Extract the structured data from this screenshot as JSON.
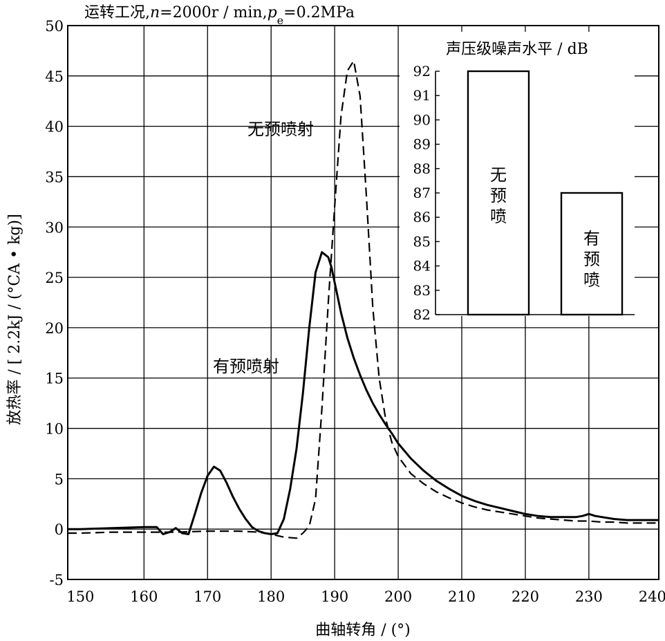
{
  "chart_data": [
    {
      "type": "line",
      "title": "运转工况, n=2000r / min, pe=0.2MPa",
      "title_parts": {
        "prefix": "运转工况,",
        "n_symbol": "n",
        "n_value": "=2000r / min,",
        "p_symbol": "p",
        "p_subscript": "e",
        "p_value": "=0.2MPa"
      },
      "xlabel": "曲轴转角 / (°)",
      "ylabel": "放热率 / [ 2.2kJ / (°CA • kg)]",
      "xlim": [
        148,
        241
      ],
      "ylim": [
        -5,
        50
      ],
      "xticks": [
        150,
        160,
        170,
        180,
        190,
        200,
        210,
        220,
        230,
        240
      ],
      "yticks": [
        -5,
        0,
        5,
        10,
        15,
        20,
        25,
        30,
        35,
        40,
        45,
        50
      ],
      "x_gridlines": [
        160,
        170,
        180,
        190,
        200,
        210,
        220,
        230
      ],
      "y_gridlines": [
        0,
        5,
        10,
        15,
        20,
        25,
        30,
        35,
        40,
        45
      ],
      "grid": true,
      "series": [
        {
          "name": "有预喷射",
          "style": "solid",
          "color": "#000000",
          "x": [
            148,
            150,
            155,
            160,
            162,
            163,
            164,
            165,
            166,
            167,
            168,
            169,
            170,
            171,
            172,
            173,
            174,
            175,
            176,
            177,
            178,
            179,
            180,
            181,
            182,
            183,
            184,
            185,
            186,
            187,
            188,
            189,
            189.5,
            190,
            191,
            192,
            193,
            194,
            195,
            196,
            197,
            198,
            199,
            200,
            202,
            204,
            206,
            208,
            210,
            212,
            214,
            216,
            218,
            220,
            222,
            224,
            226,
            228,
            229,
            230,
            231,
            232,
            234,
            236,
            238,
            240,
            241
          ],
          "y": [
            0.0,
            0.0,
            0.1,
            0.2,
            0.2,
            -0.5,
            -0.3,
            0.1,
            -0.4,
            -0.5,
            1.5,
            3.6,
            5.3,
            6.2,
            5.8,
            4.6,
            3.2,
            2.0,
            1.0,
            0.2,
            -0.2,
            -0.4,
            -0.5,
            -0.4,
            1.0,
            4.0,
            8.0,
            13.5,
            20.0,
            25.5,
            27.5,
            27.0,
            26.0,
            24.5,
            21.5,
            19.0,
            17.0,
            15.3,
            13.8,
            12.5,
            11.4,
            10.4,
            9.5,
            8.5,
            7.0,
            5.8,
            4.8,
            4.0,
            3.3,
            2.8,
            2.4,
            2.1,
            1.8,
            1.5,
            1.3,
            1.2,
            1.2,
            1.2,
            1.3,
            1.5,
            1.3,
            1.2,
            1.0,
            0.9,
            0.9,
            0.9,
            0.9
          ]
        },
        {
          "name": "无预喷射",
          "style": "dashed",
          "color": "#000000",
          "x": [
            148,
            150,
            155,
            160,
            165,
            170,
            175,
            178,
            180,
            182,
            184,
            185,
            186,
            187,
            188,
            189,
            190,
            191,
            192,
            193,
            194,
            195,
            196,
            197,
            198,
            199,
            200,
            202,
            204,
            206,
            208,
            210,
            212,
            214,
            216,
            218,
            220,
            222,
            224,
            226,
            228,
            230,
            232,
            234,
            236,
            238,
            240,
            241
          ],
          "y": [
            -0.4,
            -0.4,
            -0.3,
            -0.3,
            -0.3,
            -0.2,
            -0.2,
            -0.3,
            -0.5,
            -0.8,
            -0.9,
            -0.4,
            0.3,
            3.0,
            12.0,
            22.5,
            32.0,
            41.0,
            45.5,
            46.5,
            43.0,
            33.0,
            22.0,
            15.0,
            11.0,
            8.6,
            7.2,
            5.5,
            4.5,
            3.7,
            3.1,
            2.6,
            2.2,
            1.9,
            1.7,
            1.5,
            1.3,
            1.1,
            1.0,
            0.9,
            0.8,
            0.8,
            0.7,
            0.7,
            0.6,
            0.6,
            0.6,
            0.6
          ]
        }
      ],
      "annotations": [
        {
          "text": "无预喷射",
          "series": "无预喷射"
        },
        {
          "text": "有预喷射",
          "series": "有预喷射"
        }
      ]
    },
    {
      "type": "bar",
      "title": "声压级噪声水平 / dB",
      "categories": [
        "无预喷",
        "有预喷"
      ],
      "values": [
        92,
        87
      ],
      "bar_labels": [
        "无\n预\n喷",
        "有\n预\n喷"
      ],
      "ylim": [
        82,
        92
      ],
      "yticks": [
        82,
        83,
        84,
        85,
        86,
        87,
        88,
        89,
        90,
        91,
        92
      ],
      "grid": false
    }
  ]
}
